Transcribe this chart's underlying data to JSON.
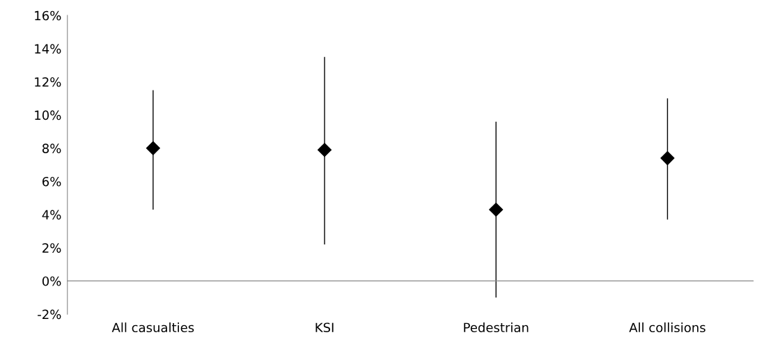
{
  "chart_data": {
    "type": "scatter",
    "categories": [
      "All casualties",
      "KSI",
      "Pedestrian",
      "All collisions"
    ],
    "values": [
      8.0,
      7.9,
      4.3,
      7.4
    ],
    "errors": [
      [
        4.3,
        11.5
      ],
      [
        2.2,
        13.5
      ],
      [
        -1.0,
        9.6
      ],
      [
        3.7,
        11.0
      ]
    ],
    "color": "#000000",
    "marker": "diamond",
    "ylim": [
      -2,
      16
    ],
    "yticks": [
      {
        "value": -2,
        "label": "-2%"
      },
      {
        "value": 0,
        "label": "0%"
      },
      {
        "value": 2,
        "label": "2%"
      },
      {
        "value": 4,
        "label": "4%"
      },
      {
        "value": 6,
        "label": "6%"
      },
      {
        "value": 8,
        "label": "8%"
      },
      {
        "value": 10,
        "label": "10%"
      },
      {
        "value": 12,
        "label": "12%"
      },
      {
        "value": 14,
        "label": "14%"
      },
      {
        "value": 16,
        "label": "16%"
      }
    ]
  }
}
